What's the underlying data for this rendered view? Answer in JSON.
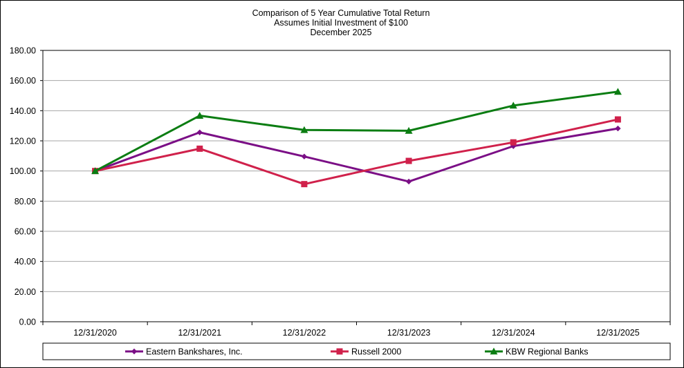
{
  "chart_data": {
    "type": "line",
    "title": [
      "Comparison of 5 Year Cumulative Total Return",
      "Assumes Initial Investment of $100",
      "December 2025"
    ],
    "categories": [
      "12/31/2020",
      "12/31/2021",
      "12/31/2022",
      "12/31/2023",
      "12/31/2024",
      "12/31/2025"
    ],
    "ylim": [
      0,
      180
    ],
    "yticks": [
      "0.00",
      "20.00",
      "40.00",
      "60.00",
      "80.00",
      "100.00",
      "120.00",
      "140.00",
      "160.00",
      "180.00"
    ],
    "grid": true,
    "legend_position": "bottom",
    "series": [
      {
        "name": "Eastern Bankshares, Inc.",
        "color": "#7b0f86",
        "marker": "diamond",
        "values": [
          100.0,
          125.6,
          109.6,
          93.0,
          116.5,
          128.2
        ]
      },
      {
        "name": "Russell 2000",
        "color": "#d0214b",
        "marker": "square",
        "values": [
          100.0,
          114.8,
          91.3,
          106.7,
          119.0,
          134.2
        ]
      },
      {
        "name": "KBW Regional Banks",
        "color": "#0b7d12",
        "marker": "triangle",
        "values": [
          100.0,
          136.7,
          127.2,
          126.7,
          143.4,
          152.6
        ]
      }
    ]
  }
}
